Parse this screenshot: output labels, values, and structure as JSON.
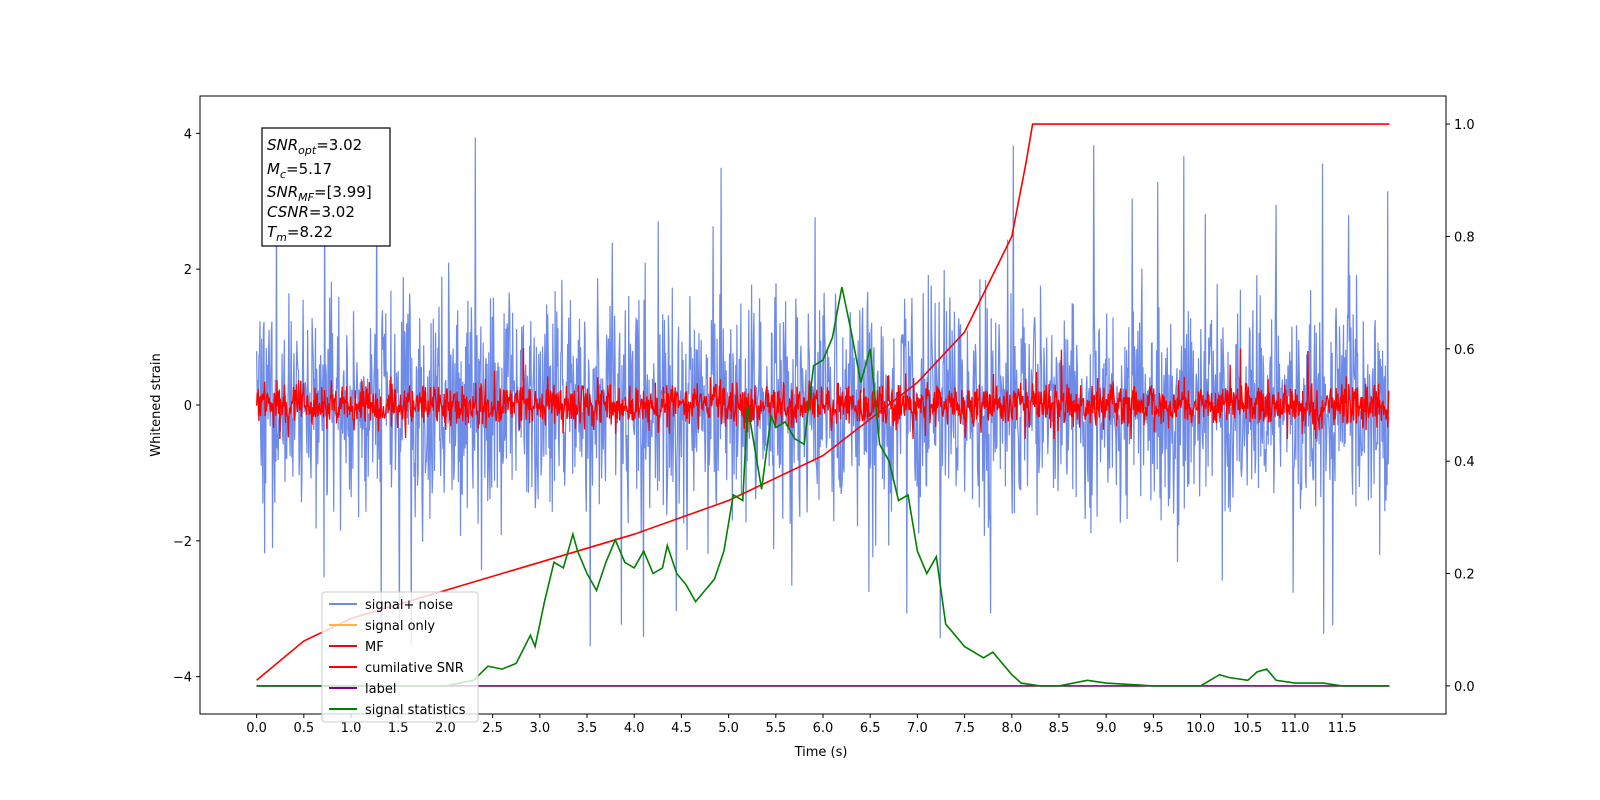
{
  "chart_data": {
    "type": "line",
    "xlabel": "Time (s)",
    "ylabel_left": "Whitened strain",
    "xlim": [
      -0.6,
      12.6
    ],
    "ylim_left": [
      -4.55,
      4.55
    ],
    "ylim_right": [
      -0.05,
      1.05
    ],
    "xticks": [
      "0.0",
      "0.5",
      "1.0",
      "1.5",
      "2.0",
      "2.5",
      "3.0",
      "3.5",
      "4.0",
      "4.5",
      "5.0",
      "5.5",
      "6.0",
      "6.5",
      "7.0",
      "7.5",
      "8.0",
      "8.5",
      "9.0",
      "9.5",
      "10.0",
      "10.5",
      "11.0",
      "11.5"
    ],
    "yticks_left": [
      "4",
      "2",
      "0",
      "−2",
      "−4"
    ],
    "yticks_right": [
      "1.0",
      "0.8",
      "0.6",
      "0.4",
      "0.2",
      "0.0"
    ],
    "legend_position": "lower-left",
    "info_box": {
      "snr_opt_main": "SNR",
      "snr_opt_sub": "opt",
      "snr_opt_value": "=3.02",
      "mc_main": "M",
      "mc_sub": "c",
      "mc_value": "=5.17",
      "snr_mf_main": "SNR",
      "snr_mf_sub": "MF",
      "snr_mf_value": "=[3.99]",
      "csnr_main": "CSNR",
      "csnr_value": "=3.02",
      "tm_main": "T",
      "tm_sub": "m",
      "tm_value": "=8.22"
    },
    "series": [
      {
        "name": "signal+ noise",
        "color": "#6f8be8",
        "axis": "left",
        "envelope": {
          "typical": [
            -2.3,
            2.3
          ],
          "extreme": [
            -4.1,
            4.1
          ]
        }
      },
      {
        "name": "signal only",
        "color": "#ffb347",
        "axis": "left"
      },
      {
        "name": "MF",
        "color": "#ff0000",
        "axis": "left",
        "envelope": {
          "typical": [
            -0.45,
            0.45
          ],
          "extreme": [
            -0.5,
            1.0
          ]
        }
      },
      {
        "name": "cumilative SNR",
        "color": "#ff0000",
        "axis": "right",
        "x": [
          0.0,
          0.5,
          1.0,
          2.0,
          3.0,
          4.0,
          5.0,
          6.0,
          7.0,
          7.5,
          8.0,
          8.15,
          8.22,
          12.0
        ],
        "y": [
          0.01,
          0.08,
          0.12,
          0.17,
          0.22,
          0.27,
          0.33,
          0.41,
          0.54,
          0.63,
          0.8,
          0.93,
          1.0,
          1.0
        ]
      },
      {
        "name": "label",
        "color": "#800080",
        "axis": "right",
        "x": [
          0.0,
          12.0
        ],
        "y": [
          0.0,
          0.0
        ]
      },
      {
        "name": "signal statistics",
        "color": "#008000",
        "axis": "right",
        "x": [
          0.0,
          0.5,
          1.0,
          1.5,
          2.0,
          2.3,
          2.45,
          2.6,
          2.75,
          2.9,
          2.95,
          3.05,
          3.15,
          3.25,
          3.35,
          3.4,
          3.5,
          3.6,
          3.7,
          3.8,
          3.9,
          4.0,
          4.1,
          4.2,
          4.3,
          4.35,
          4.45,
          4.55,
          4.65,
          4.75,
          4.85,
          4.95,
          5.05,
          5.15,
          5.2,
          5.3,
          5.35,
          5.45,
          5.5,
          5.6,
          5.7,
          5.8,
          5.9,
          6.0,
          6.1,
          6.2,
          6.3,
          6.4,
          6.5,
          6.6,
          6.7,
          6.8,
          6.9,
          7.0,
          7.1,
          7.2,
          7.3,
          7.4,
          7.5,
          7.6,
          7.7,
          7.8,
          7.9,
          8.0,
          8.1,
          8.3,
          8.5,
          8.8,
          9.0,
          9.5,
          10.0,
          10.1,
          10.2,
          10.3,
          10.5,
          10.6,
          10.7,
          10.8,
          11.0,
          11.3,
          11.5,
          12.0
        ],
        "y": [
          0.0,
          0.0,
          0.0,
          0.0,
          0.0,
          0.01,
          0.035,
          0.03,
          0.04,
          0.09,
          0.07,
          0.15,
          0.22,
          0.21,
          0.27,
          0.24,
          0.2,
          0.17,
          0.22,
          0.26,
          0.22,
          0.21,
          0.24,
          0.2,
          0.21,
          0.25,
          0.2,
          0.18,
          0.15,
          0.17,
          0.19,
          0.24,
          0.34,
          0.33,
          0.5,
          0.4,
          0.35,
          0.48,
          0.46,
          0.47,
          0.44,
          0.43,
          0.57,
          0.58,
          0.62,
          0.71,
          0.63,
          0.54,
          0.6,
          0.43,
          0.4,
          0.33,
          0.34,
          0.24,
          0.2,
          0.23,
          0.11,
          0.09,
          0.07,
          0.06,
          0.05,
          0.06,
          0.04,
          0.02,
          0.005,
          0.0,
          0.0,
          0.01,
          0.005,
          0.0,
          0.0,
          0.01,
          0.02,
          0.015,
          0.01,
          0.025,
          0.03,
          0.01,
          0.005,
          0.005,
          0.0,
          0.0
        ]
      }
    ]
  }
}
